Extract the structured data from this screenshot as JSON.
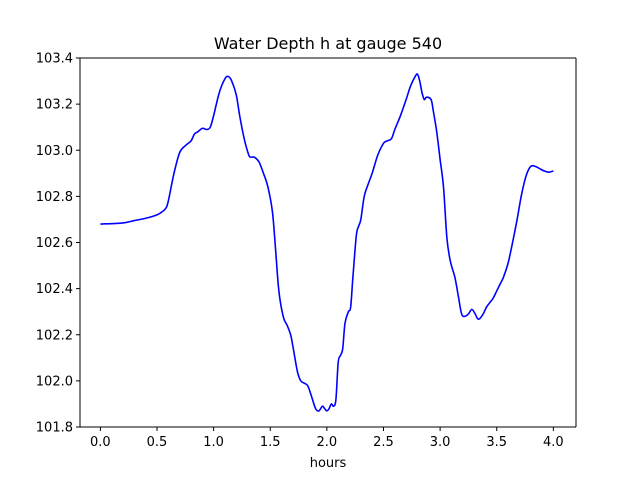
{
  "chart_data": {
    "type": "line",
    "title": "Water Depth h at gauge 540",
    "xlabel": "hours",
    "ylabel": "",
    "xlim": [
      -0.18,
      4.2
    ],
    "ylim": [
      101.8,
      103.4
    ],
    "x_ticks": [
      0.0,
      0.5,
      1.0,
      1.5,
      2.0,
      2.5,
      3.0,
      3.5,
      4.0
    ],
    "x_tick_labels": [
      "0.0",
      "0.5",
      "1.0",
      "1.5",
      "2.0",
      "2.5",
      "3.0",
      "3.5",
      "4.0"
    ],
    "y_ticks": [
      101.8,
      102.0,
      102.2,
      102.4,
      102.6,
      102.8,
      103.0,
      103.2,
      103.4
    ],
    "y_tick_labels": [
      "101.8",
      "102.0",
      "102.2",
      "102.4",
      "102.6",
      "102.8",
      "103.0",
      "103.2",
      "103.4"
    ],
    "grid": false,
    "series": [
      {
        "color": "#0000ff",
        "x": [
          0.0,
          0.2,
          0.3,
          0.4,
          0.5,
          0.55,
          0.58,
          0.6,
          0.65,
          0.7,
          0.75,
          0.8,
          0.83,
          0.86,
          0.9,
          0.94,
          0.97,
          1.0,
          1.05,
          1.1,
          1.13,
          1.16,
          1.2,
          1.23,
          1.27,
          1.31,
          1.33,
          1.36,
          1.4,
          1.44,
          1.48,
          1.52,
          1.55,
          1.57,
          1.59,
          1.62,
          1.65,
          1.68,
          1.7,
          1.74,
          1.77,
          1.8,
          1.83,
          1.86,
          1.9,
          1.93,
          1.96,
          1.98,
          2.0,
          2.02,
          2.04,
          2.06,
          2.08,
          2.1,
          2.12,
          2.14,
          2.16,
          2.19,
          2.21,
          2.23,
          2.26,
          2.28,
          2.3,
          2.33,
          2.37,
          2.4,
          2.45,
          2.5,
          2.53,
          2.57,
          2.6,
          2.65,
          2.7,
          2.74,
          2.78,
          2.8,
          2.82,
          2.84,
          2.86,
          2.88,
          2.92,
          2.94,
          2.97,
          3.0,
          3.03,
          3.06,
          3.09,
          3.13,
          3.16,
          3.19,
          3.22,
          3.25,
          3.28,
          3.31,
          3.33,
          3.35,
          3.38,
          3.41,
          3.44,
          3.47,
          3.5,
          3.53,
          3.56,
          3.6,
          3.64,
          3.68,
          3.72,
          3.76,
          3.8,
          3.84,
          3.88,
          3.92,
          3.96,
          4.0
        ],
        "y": [
          102.68,
          102.685,
          102.695,
          102.705,
          102.72,
          102.735,
          102.75,
          102.78,
          102.9,
          102.99,
          103.02,
          103.04,
          103.07,
          103.08,
          103.095,
          103.09,
          103.1,
          103.15,
          103.25,
          103.31,
          103.32,
          103.3,
          103.24,
          103.15,
          103.05,
          102.98,
          102.97,
          102.97,
          102.95,
          102.9,
          102.84,
          102.73,
          102.55,
          102.42,
          102.34,
          102.27,
          102.24,
          102.2,
          102.15,
          102.04,
          102.0,
          101.99,
          101.98,
          101.94,
          101.88,
          101.87,
          101.89,
          101.88,
          101.87,
          101.88,
          101.9,
          101.89,
          101.92,
          102.08,
          102.11,
          102.14,
          102.25,
          102.3,
          102.32,
          102.45,
          102.63,
          102.67,
          102.7,
          102.8,
          102.86,
          102.9,
          102.98,
          103.03,
          103.04,
          103.05,
          103.09,
          103.15,
          103.22,
          103.28,
          103.32,
          103.33,
          103.3,
          103.25,
          103.22,
          103.23,
          103.22,
          103.17,
          103.08,
          102.96,
          102.84,
          102.62,
          102.52,
          102.45,
          102.37,
          102.29,
          102.28,
          102.29,
          102.31,
          102.29,
          102.27,
          102.27,
          102.29,
          102.32,
          102.34,
          102.36,
          102.39,
          102.42,
          102.45,
          102.51,
          102.6,
          102.7,
          102.81,
          102.89,
          102.93,
          102.93,
          102.92,
          102.91,
          102.905,
          102.91
        ]
      }
    ]
  }
}
